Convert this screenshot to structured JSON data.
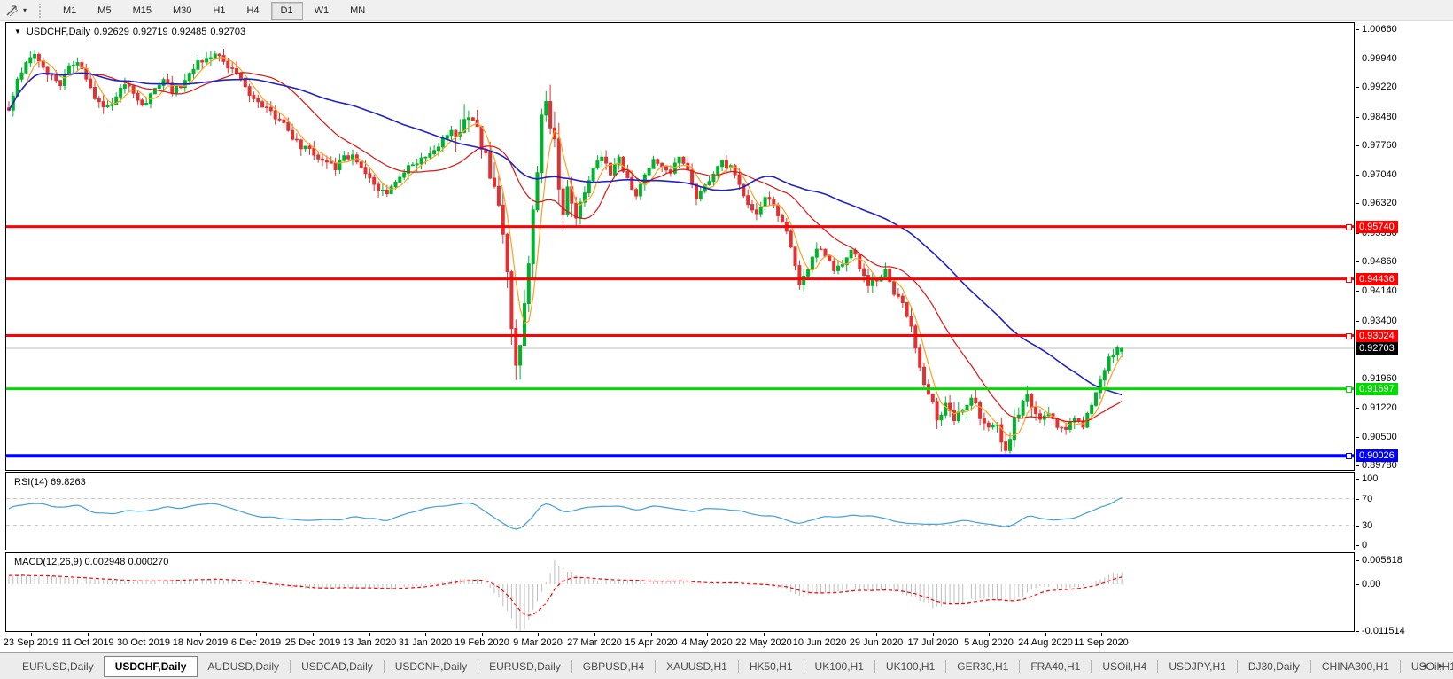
{
  "toolbar": {
    "tool_icon": "crosshair-line-tool",
    "caret": "▾",
    "timeframes": [
      "M1",
      "M5",
      "M15",
      "M30",
      "H1",
      "H4",
      "D1",
      "W1",
      "MN"
    ],
    "active_timeframe": "D1"
  },
  "chart": {
    "title": {
      "caret": "▼",
      "symbol": "USDCHF,Daily",
      "open": "0.92629",
      "high": "0.92719",
      "low": "0.92485",
      "close": "0.92703"
    }
  },
  "rsi_header": {
    "name": "RSI(14)",
    "value": "69.8263"
  },
  "macd_header": {
    "name": "MACD(12,26,9)",
    "value_main": "0.002948",
    "value_signal": "0.000270"
  },
  "tabs": {
    "items": [
      "EURUSD,Daily",
      "USDCHF,Daily",
      "AUDUSD,Daily",
      "USDCAD,Daily",
      "USDCNH,Daily",
      "EURUSD,Daily",
      "GBPUSD,H4",
      "XAUUSD,H1",
      "HK50,H1",
      "UK100,H1",
      "UK100,H1",
      "GER30,H1",
      "FRA40,H1",
      "USOil,H4",
      "USDJPY,H1",
      "DJ30,Daily",
      "CHINA300,H1",
      "USOil,H1"
    ],
    "active_index": 1,
    "scroll_left": "◄",
    "scroll_right": "►"
  },
  "chart_data": {
    "type": "candlestick",
    "symbol": "USDCHF",
    "timeframe": "Daily",
    "current_ohlc": {
      "open": 0.92629,
      "high": 0.92719,
      "low": 0.92485,
      "close": 0.92703
    },
    "candle_count": 260,
    "ylim": [
      0.8978,
      1.0066
    ],
    "up_color": "#00B22C",
    "down_color": "#E03232",
    "y_ticks": [
      "1.00660",
      "0.99940",
      "0.99220",
      "0.98480",
      "0.97760",
      "0.97040",
      "0.96320",
      "0.95580",
      "0.94860",
      "0.94140",
      "0.93400",
      "0.91960",
      "0.91220",
      "0.90500",
      "0.89780"
    ],
    "x_labels": [
      "23 Sep 2019",
      "11 Oct 2019",
      "30 Oct 2019",
      "18 Nov 2019",
      "6 Dec 2019",
      "25 Dec 2019",
      "13 Jan 2020",
      "31 Jan 2020",
      "19 Feb 2020",
      "9 Mar 2020",
      "27 Mar 2020",
      "15 Apr 2020",
      "4 May 2020",
      "22 May 2020",
      "10 Jun 2020",
      "29 Jun 2020",
      "17 Jul 2020",
      "5 Aug 2020",
      "24 Aug 2020",
      "11 Sep 2020"
    ],
    "hlines": [
      {
        "price": 0.9574,
        "label": "0.95740",
        "color": "#FF0000",
        "label_fg": "#FFFFFF",
        "width": 3
      },
      {
        "price": 0.94436,
        "label": "0.94436",
        "color": "#FF0000",
        "label_fg": "#FFFFFF",
        "width": 3
      },
      {
        "price": 0.93024,
        "label": "0.93024",
        "color": "#FF0000",
        "label_fg": "#FFFFFF",
        "width": 3
      },
      {
        "price": 0.91697,
        "label": "0.91697",
        "color": "#00DC00",
        "label_fg": "#FFFFFF",
        "width": 3
      },
      {
        "price": 0.90026,
        "label": "0.90026",
        "color": "#0000FF",
        "label_fg": "#FFFFFF",
        "width": 4
      }
    ],
    "current_price": {
      "price": 0.92703,
      "label": "0.92703",
      "line_color": "#BEBEBE",
      "label_bg": "#000000",
      "label_fg": "#FFFFFF"
    },
    "moving_averages": [
      {
        "period": 5,
        "color": "#FFA01E"
      },
      {
        "period": 21,
        "color": "#DC1414"
      },
      {
        "period": 55,
        "color": "#2121C8"
      }
    ],
    "price_anchors": [
      [
        0,
        0.987
      ],
      [
        2,
        0.9935
      ],
      [
        4,
        0.9985
      ],
      [
        6,
        1.0005
      ],
      [
        8,
        0.9975
      ],
      [
        10,
        0.9945
      ],
      [
        12,
        0.9925
      ],
      [
        14,
        0.9975
      ],
      [
        16,
        0.9985
      ],
      [
        18,
        0.9945
      ],
      [
        20,
        0.989
      ],
      [
        22,
        0.987
      ],
      [
        24,
        0.988
      ],
      [
        26,
        0.9915
      ],
      [
        28,
        0.9925
      ],
      [
        30,
        0.989
      ],
      [
        32,
        0.9875
      ],
      [
        34,
        0.992
      ],
      [
        36,
        0.994
      ],
      [
        38,
        0.991
      ],
      [
        40,
        0.9925
      ],
      [
        42,
        0.996
      ],
      [
        44,
        0.998
      ],
      [
        46,
        0.9995
      ],
      [
        48,
        1.001
      ],
      [
        50,
        0.999
      ],
      [
        52,
        0.9965
      ],
      [
        54,
        0.994
      ],
      [
        56,
        0.9905
      ],
      [
        58,
        0.989
      ],
      [
        60,
        0.9868
      ],
      [
        62,
        0.9845
      ],
      [
        64,
        0.983
      ],
      [
        66,
        0.979
      ],
      [
        68,
        0.9775
      ],
      [
        70,
        0.977
      ],
      [
        72,
        0.9748
      ],
      [
        74,
        0.9735
      ],
      [
        76,
        0.9722
      ],
      [
        78,
        0.9748
      ],
      [
        80,
        0.9752
      ],
      [
        82,
        0.9725
      ],
      [
        84,
        0.97
      ],
      [
        86,
        0.9672
      ],
      [
        88,
        0.9663
      ],
      [
        90,
        0.969
      ],
      [
        92,
        0.9712
      ],
      [
        94,
        0.973
      ],
      [
        96,
        0.9742
      ],
      [
        98,
        0.976
      ],
      [
        100,
        0.978
      ],
      [
        102,
        0.9798
      ],
      [
        104,
        0.9815
      ],
      [
        106,
        0.9832
      ],
      [
        108,
        0.9845
      ],
      [
        109,
        0.9838
      ],
      [
        110,
        0.978
      ],
      [
        111,
        0.974
      ],
      [
        112,
        0.9695
      ],
      [
        113,
        0.966
      ],
      [
        114,
        0.9615
      ],
      [
        115,
        0.954
      ],
      [
        116,
        0.9445
      ],
      [
        117,
        0.933
      ],
      [
        118,
        0.923
      ],
      [
        119,
        0.926
      ],
      [
        120,
        0.938
      ],
      [
        121,
        0.948
      ],
      [
        122,
        0.96
      ],
      [
        123,
        0.972
      ],
      [
        124,
        0.985
      ],
      [
        125,
        0.989
      ],
      [
        126,
        0.9835
      ],
      [
        127,
        0.978
      ],
      [
        128,
        0.966
      ],
      [
        129,
        0.9615
      ],
      [
        130,
        0.9655
      ],
      [
        132,
        0.96
      ],
      [
        134,
        0.966
      ],
      [
        136,
        0.9725
      ],
      [
        138,
        0.975
      ],
      [
        140,
        0.97
      ],
      [
        142,
        0.9745
      ],
      [
        144,
        0.969
      ],
      [
        146,
        0.9655
      ],
      [
        148,
        0.97
      ],
      [
        150,
        0.974
      ],
      [
        152,
        0.973
      ],
      [
        154,
        0.9705
      ],
      [
        156,
        0.9745
      ],
      [
        158,
        0.971
      ],
      [
        160,
        0.964
      ],
      [
        162,
        0.967
      ],
      [
        164,
        0.971
      ],
      [
        166,
        0.9735
      ],
      [
        168,
        0.972
      ],
      [
        170,
        0.968
      ],
      [
        172,
        0.963
      ],
      [
        174,
        0.9605
      ],
      [
        176,
        0.965
      ],
      [
        178,
        0.962
      ],
      [
        180,
        0.958
      ],
      [
        182,
        0.953
      ],
      [
        184,
        0.9425
      ],
      [
        186,
        0.947
      ],
      [
        188,
        0.952
      ],
      [
        190,
        0.95
      ],
      [
        192,
        0.9465
      ],
      [
        194,
        0.9485
      ],
      [
        196,
        0.952
      ],
      [
        198,
        0.9475
      ],
      [
        200,
        0.943
      ],
      [
        202,
        0.9445
      ],
      [
        204,
        0.9465
      ],
      [
        206,
        0.941
      ],
      [
        208,
        0.9385
      ],
      [
        210,
        0.933
      ],
      [
        212,
        0.922
      ],
      [
        214,
        0.916
      ],
      [
        216,
        0.91
      ],
      [
        218,
        0.913
      ],
      [
        220,
        0.909
      ],
      [
        222,
        0.9115
      ],
      [
        224,
        0.9145
      ],
      [
        226,
        0.9105
      ],
      [
        228,
        0.9068
      ],
      [
        230,
        0.9075
      ],
      [
        231,
        0.904
      ],
      [
        232,
        0.9005
      ],
      [
        233,
        0.9045
      ],
      [
        234,
        0.9085
      ],
      [
        236,
        0.913
      ],
      [
        237,
        0.916
      ],
      [
        238,
        0.9125
      ],
      [
        240,
        0.909
      ],
      [
        242,
        0.9108
      ],
      [
        244,
        0.908
      ],
      [
        246,
        0.9072
      ],
      [
        248,
        0.9088
      ],
      [
        250,
        0.908
      ],
      [
        252,
        0.9125
      ],
      [
        254,
        0.919
      ],
      [
        256,
        0.925
      ],
      [
        258,
        0.9268
      ],
      [
        259,
        0.92703
      ]
    ],
    "rsi": {
      "period": 14,
      "value": 69.8263,
      "color": "#42A0DC",
      "levels": [
        70,
        30
      ],
      "axis": [
        "100",
        "70",
        "30",
        "0"
      ],
      "axis_values": [
        100,
        70,
        30,
        0
      ],
      "anchors": [
        [
          0,
          57
        ],
        [
          4,
          60
        ],
        [
          8,
          63
        ],
        [
          12,
          55
        ],
        [
          16,
          60
        ],
        [
          20,
          48
        ],
        [
          24,
          46
        ],
        [
          28,
          54
        ],
        [
          32,
          50
        ],
        [
          36,
          57
        ],
        [
          40,
          55
        ],
        [
          44,
          60
        ],
        [
          48,
          63
        ],
        [
          52,
          55
        ],
        [
          56,
          47
        ],
        [
          60,
          42
        ],
        [
          64,
          40
        ],
        [
          68,
          36
        ],
        [
          72,
          38
        ],
        [
          76,
          36
        ],
        [
          80,
          44
        ],
        [
          84,
          40
        ],
        [
          88,
          37
        ],
        [
          92,
          46
        ],
        [
          96,
          52
        ],
        [
          100,
          58
        ],
        [
          104,
          62
        ],
        [
          108,
          64
        ],
        [
          110,
          52
        ],
        [
          112,
          45
        ],
        [
          114,
          37
        ],
        [
          116,
          28
        ],
        [
          118,
          22
        ],
        [
          120,
          30
        ],
        [
          122,
          42
        ],
        [
          124,
          60
        ],
        [
          125,
          64
        ],
        [
          127,
          57
        ],
        [
          129,
          48
        ],
        [
          131,
          52
        ],
        [
          134,
          56
        ],
        [
          138,
          58
        ],
        [
          142,
          60
        ],
        [
          146,
          52
        ],
        [
          150,
          58
        ],
        [
          154,
          55
        ],
        [
          158,
          50
        ],
        [
          162,
          54
        ],
        [
          166,
          57
        ],
        [
          170,
          51
        ],
        [
          174,
          46
        ],
        [
          178,
          44
        ],
        [
          182,
          37
        ],
        [
          184,
          31
        ],
        [
          186,
          37
        ],
        [
          190,
          43
        ],
        [
          194,
          42
        ],
        [
          198,
          45
        ],
        [
          202,
          41
        ],
        [
          206,
          37
        ],
        [
          210,
          33
        ],
        [
          214,
          29
        ],
        [
          218,
          33
        ],
        [
          222,
          36
        ],
        [
          226,
          33
        ],
        [
          230,
          30
        ],
        [
          232,
          27
        ],
        [
          234,
          32
        ],
        [
          236,
          40
        ],
        [
          237,
          45
        ],
        [
          240,
          41
        ],
        [
          244,
          38
        ],
        [
          248,
          41
        ],
        [
          252,
          50
        ],
        [
          254,
          57
        ],
        [
          256,
          63
        ],
        [
          258,
          68
        ],
        [
          259,
          69.8
        ]
      ]
    },
    "macd": {
      "params": [
        12,
        26,
        9
      ],
      "value_main": 0.002948,
      "value_signal": 0.00027,
      "hist_color": "#BEBEBE",
      "signal_color": "#FF0000",
      "axis": [
        "0.005818",
        "0.00",
        "-0.011514"
      ],
      "axis_values": [
        0.005818,
        0,
        -0.011514
      ],
      "anchors": [
        [
          0,
          0.0022
        ],
        [
          6,
          0.0021
        ],
        [
          12,
          0.0017
        ],
        [
          18,
          0.0013
        ],
        [
          24,
          0.0009
        ],
        [
          30,
          0.0007
        ],
        [
          36,
          0.0009
        ],
        [
          42,
          0.0011
        ],
        [
          48,
          0.0013
        ],
        [
          54,
          0.0006
        ],
        [
          60,
          -0.0002
        ],
        [
          66,
          -0.0008
        ],
        [
          72,
          -0.0011
        ],
        [
          78,
          -0.0008
        ],
        [
          84,
          -0.001
        ],
        [
          90,
          -0.0011
        ],
        [
          96,
          -0.0003
        ],
        [
          102,
          0.0008
        ],
        [
          106,
          0.0013
        ],
        [
          109,
          0.0014
        ],
        [
          112,
          -0.0008
        ],
        [
          114,
          -0.0032
        ],
        [
          116,
          -0.0068
        ],
        [
          118,
          -0.01
        ],
        [
          119,
          -0.0113
        ],
        [
          120,
          -0.0108
        ],
        [
          121,
          -0.0088
        ],
        [
          122,
          -0.0062
        ],
        [
          124,
          -0.0018
        ],
        [
          126,
          0.0028
        ],
        [
          127,
          0.0056
        ],
        [
          128,
          0.005
        ],
        [
          130,
          0.0032
        ],
        [
          133,
          0.0016
        ],
        [
          136,
          0.001
        ],
        [
          140,
          0.0008
        ],
        [
          144,
          0.001
        ],
        [
          148,
          0.0005
        ],
        [
          152,
          0.0007
        ],
        [
          156,
          0.0009
        ],
        [
          160,
          0.0002
        ],
        [
          164,
          0.0001
        ],
        [
          168,
          0.0004
        ],
        [
          172,
          -0.0002
        ],
        [
          176,
          -0.0004
        ],
        [
          180,
          -0.001
        ],
        [
          182,
          -0.0018
        ],
        [
          184,
          -0.003
        ],
        [
          188,
          -0.0024
        ],
        [
          192,
          -0.0018
        ],
        [
          196,
          -0.0011
        ],
        [
          200,
          -0.0016
        ],
        [
          204,
          -0.0013
        ],
        [
          208,
          -0.002
        ],
        [
          210,
          -0.0028
        ],
        [
          212,
          -0.0042
        ],
        [
          214,
          -0.005
        ],
        [
          216,
          -0.0058
        ],
        [
          218,
          -0.0055
        ],
        [
          220,
          -0.005
        ],
        [
          224,
          -0.0038
        ],
        [
          228,
          -0.0034
        ],
        [
          232,
          -0.0044
        ],
        [
          234,
          -0.0041
        ],
        [
          236,
          -0.0027
        ],
        [
          238,
          -0.0013
        ],
        [
          240,
          -0.0006
        ],
        [
          244,
          -0.0011
        ],
        [
          248,
          -0.0008
        ],
        [
          252,
          0.0003
        ],
        [
          254,
          0.0013
        ],
        [
          256,
          0.0023
        ],
        [
          258,
          0.0028
        ],
        [
          259,
          0.002948
        ]
      ]
    }
  }
}
